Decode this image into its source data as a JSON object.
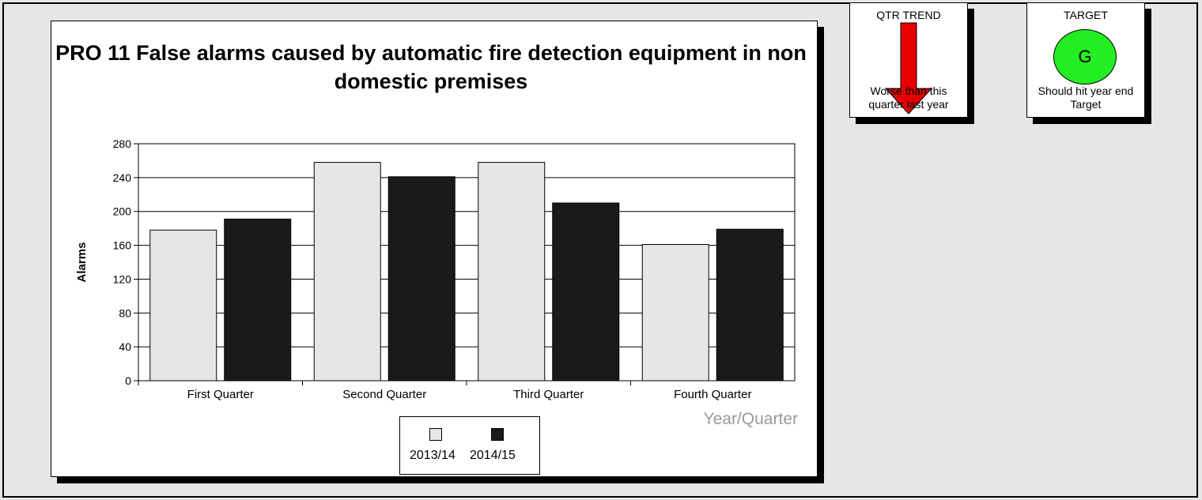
{
  "chart_data": {
    "type": "bar",
    "title": "PRO 11 False alarms caused by automatic fire detection equipment in non domestic premises",
    "xlabel": "Year/Quarter",
    "ylabel": "Alarms",
    "ylim": [
      0,
      280
    ],
    "yticks": [
      0,
      40,
      80,
      120,
      160,
      200,
      240,
      280
    ],
    "grid": true,
    "legend_position": "bottom",
    "categories": [
      "First Quarter",
      "Second Quarter",
      "Third Quarter",
      "Fourth Quarter"
    ],
    "series": [
      {
        "name": "2013/14",
        "values": [
          178,
          258,
          258,
          161
        ],
        "color": "#e6e6e6"
      },
      {
        "name": "2014/15",
        "values": [
          191,
          241,
          210,
          179
        ],
        "color": "#1a1a1a"
      }
    ]
  },
  "trend": {
    "title": "QTR TREND",
    "text_line1": "Worse than this",
    "text_line2": "quarter last year",
    "icon": "down-arrow-icon",
    "color": "#e60000"
  },
  "target": {
    "title": "TARGET",
    "status": "G",
    "text_line1": "Should hit year end",
    "text_line2": "Target",
    "color": "#22ee22"
  }
}
